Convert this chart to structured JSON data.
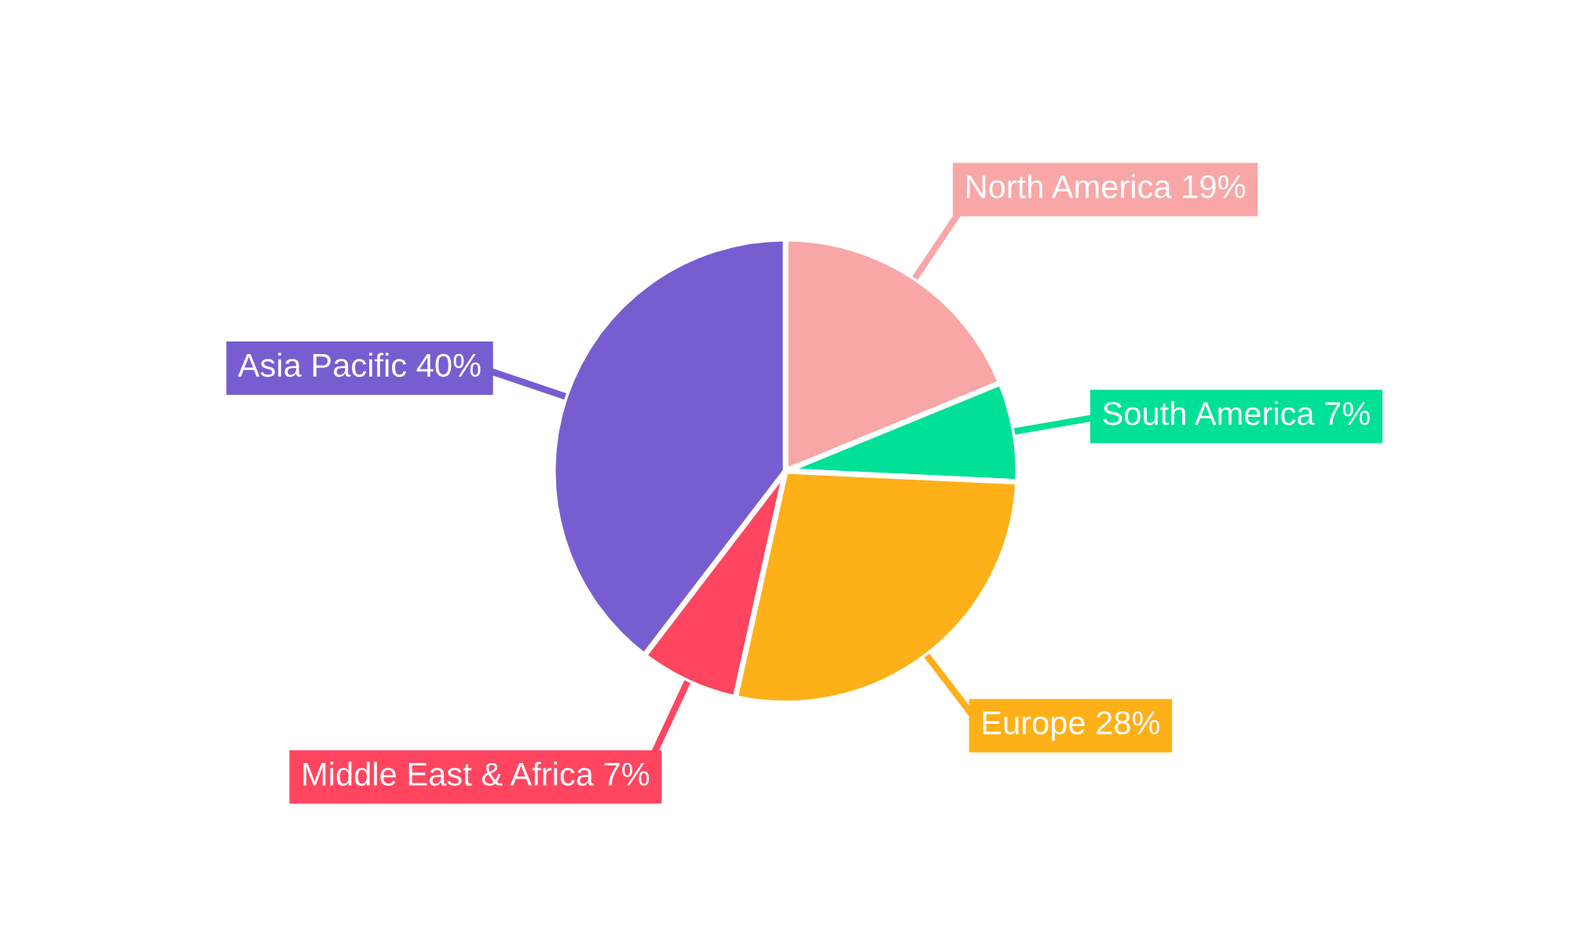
{
  "chart_data": {
    "type": "pie",
    "categories": [
      "North America",
      "South America",
      "Europe",
      "Middle East & Africa",
      "Asia Pacific"
    ],
    "values": [
      19,
      7,
      28,
      7,
      40
    ],
    "value_labels": [
      "19%",
      "7%",
      "28%",
      "7%",
      "40%"
    ],
    "colors": [
      "#f9a6a7",
      "#00e096",
      "#feb019",
      "#ff4560",
      "#775dd0"
    ]
  }
}
